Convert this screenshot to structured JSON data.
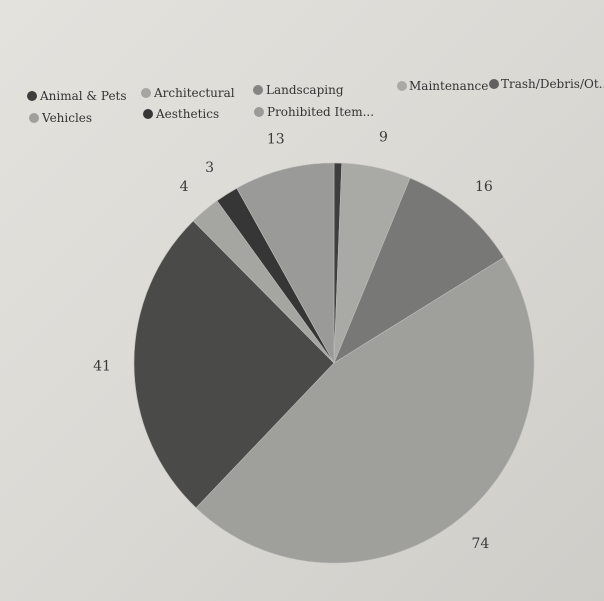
{
  "chart_data": {
    "type": "pie",
    "title": "",
    "legend_position": "top",
    "start_angle_deg": 0,
    "direction": "clockwise",
    "slices": [
      {
        "name": "Animal & Pets",
        "value": 1,
        "label": "",
        "color": "#3e3e3e"
      },
      {
        "name": "Maintenance",
        "value": 9,
        "label": "9",
        "color": "#a9a9a6"
      },
      {
        "name": "Trash/Debris/Ot...",
        "value": 16,
        "label": "16",
        "color": "#787876"
      },
      {
        "name": "Vehicles",
        "value": 74,
        "label": "74",
        "color": "#9f9f9c"
      },
      {
        "name": "Aesthetics",
        "value": 41,
        "label": "41",
        "color": "#4a4a49"
      },
      {
        "name": "Architectural",
        "value": 4,
        "label": "4",
        "color": "#a5a5a2"
      },
      {
        "name": "Landscaping",
        "value": 3,
        "label": "3",
        "color": "#363637"
      },
      {
        "name": "Prohibited Item...",
        "value": 13,
        "label": "13",
        "color": "#9a9a98"
      }
    ],
    "legend": [
      {
        "name": "Animal & Pets",
        "color": "#3e3e3e"
      },
      {
        "name": "Architectural",
        "color": "#a5a5a2"
      },
      {
        "name": "Landscaping",
        "color": "#848483"
      },
      {
        "name": "Maintenance",
        "color": "#a9a9a6"
      },
      {
        "name": "Trash/Debris/Ot...",
        "color": "#606060"
      },
      {
        "name": "Vehicles",
        "color": "#9f9f9c"
      },
      {
        "name": "Aesthetics",
        "color": "#363637"
      },
      {
        "name": "Prohibited Item...",
        "color": "#9a9a98"
      }
    ]
  }
}
